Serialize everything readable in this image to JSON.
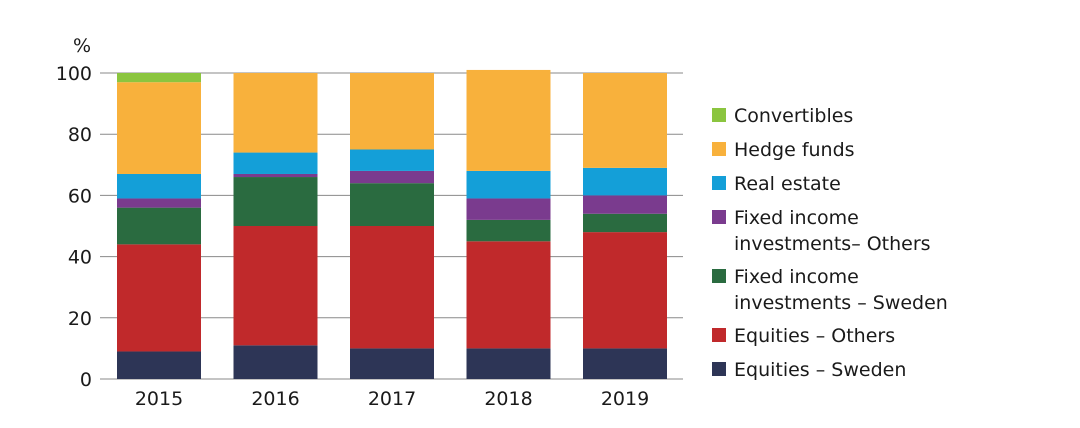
{
  "chart_data": {
    "type": "bar",
    "stacked": true,
    "title": "",
    "ylabel": "%",
    "xlabel": "",
    "ylim": [
      0,
      100
    ],
    "yticks": [
      0,
      20,
      40,
      60,
      80,
      100
    ],
    "grid": true,
    "legend_position": "right",
    "categories": [
      "2015",
      "2016",
      "2017",
      "2018",
      "2019"
    ],
    "series": [
      {
        "name": "Equities – Sweden",
        "color": "#2d3556",
        "values": [
          9,
          11,
          10,
          10,
          10
        ]
      },
      {
        "name": "Equities – Others",
        "color": "#c0292b",
        "values": [
          35,
          39,
          40,
          35,
          38
        ]
      },
      {
        "name": "Fixed income investments – Sweden",
        "color": "#2a6b40",
        "values": [
          12,
          16,
          14,
          7,
          6
        ]
      },
      {
        "name": "Fixed income investments– Others",
        "color": "#7a3b8e",
        "values": [
          3,
          1,
          4,
          7,
          6
        ]
      },
      {
        "name": "Real estate",
        "color": "#149fd8",
        "values": [
          8,
          7,
          7,
          9,
          9
        ]
      },
      {
        "name": "Hedge funds",
        "color": "#f8b13c",
        "values": [
          30,
          26,
          25,
          33,
          31
        ]
      },
      {
        "name": "Convertibles",
        "color": "#8bc53f",
        "values": [
          3,
          0,
          0,
          0,
          0
        ]
      }
    ],
    "legend": [
      {
        "series_index": 6,
        "lines": [
          "Convertibles"
        ]
      },
      {
        "series_index": 5,
        "lines": [
          "Hedge funds"
        ]
      },
      {
        "series_index": 4,
        "lines": [
          "Real estate"
        ]
      },
      {
        "series_index": 3,
        "lines": [
          "Fixed income",
          "investments– Others"
        ]
      },
      {
        "series_index": 2,
        "lines": [
          "Fixed income",
          "investments – Sweden"
        ]
      },
      {
        "series_index": 1,
        "lines": [
          "Equities – Others"
        ]
      },
      {
        "series_index": 0,
        "lines": [
          "Equities – Sweden"
        ]
      }
    ]
  }
}
